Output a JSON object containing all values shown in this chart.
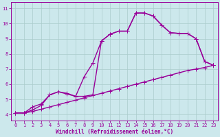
{
  "xlabel": "Windchill (Refroidissement éolien,°C)",
  "bg_color": "#cce8ec",
  "line_color": "#990099",
  "grid_color": "#aacccc",
  "xlim": [
    -0.5,
    23.5
  ],
  "ylim": [
    3.6,
    11.4
  ],
  "xticks": [
    0,
    1,
    2,
    3,
    4,
    5,
    6,
    7,
    8,
    9,
    10,
    11,
    12,
    13,
    14,
    15,
    16,
    17,
    18,
    19,
    20,
    21,
    22,
    23
  ],
  "yticks": [
    4,
    5,
    6,
    7,
    8,
    9,
    10,
    11
  ],
  "line1": {
    "x": [
      0,
      1,
      2,
      3,
      4,
      5,
      6,
      7,
      8,
      9,
      10,
      11,
      12,
      13,
      14,
      15,
      16,
      17,
      18,
      19,
      20,
      21,
      22,
      23
    ],
    "y": [
      4.1,
      4.1,
      4.2,
      4.35,
      4.5,
      4.65,
      4.8,
      4.95,
      5.1,
      5.25,
      5.4,
      5.55,
      5.7,
      5.85,
      6.0,
      6.15,
      6.3,
      6.45,
      6.6,
      6.75,
      6.9,
      7.0,
      7.1,
      7.25
    ]
  },
  "line2": {
    "x": [
      0,
      1,
      2,
      3,
      4,
      5,
      6,
      7,
      8,
      9,
      10,
      11,
      12,
      13,
      14,
      15,
      16,
      17,
      18,
      19,
      20,
      21,
      22,
      23
    ],
    "y": [
      4.1,
      4.1,
      4.3,
      4.6,
      5.3,
      5.5,
      5.4,
      5.2,
      5.2,
      5.3,
      8.85,
      9.3,
      9.5,
      9.5,
      10.7,
      10.7,
      10.5,
      9.9,
      9.4,
      9.35,
      9.35,
      9.0,
      7.5,
      7.25
    ]
  },
  "line3": {
    "x": [
      0,
      1,
      2,
      3,
      4,
      5,
      6,
      7,
      8,
      9,
      10,
      11,
      12,
      13,
      14,
      15,
      16,
      17,
      18,
      19,
      20,
      21,
      22,
      23
    ],
    "y": [
      4.1,
      4.1,
      4.5,
      4.7,
      5.3,
      5.5,
      5.35,
      5.2,
      6.5,
      7.4,
      8.85,
      9.3,
      9.5,
      9.5,
      10.7,
      10.7,
      10.5,
      9.9,
      9.4,
      9.35,
      9.35,
      9.0,
      7.5,
      7.25
    ]
  },
  "marker": "+",
  "markersize": 4,
  "linewidth": 1.0
}
